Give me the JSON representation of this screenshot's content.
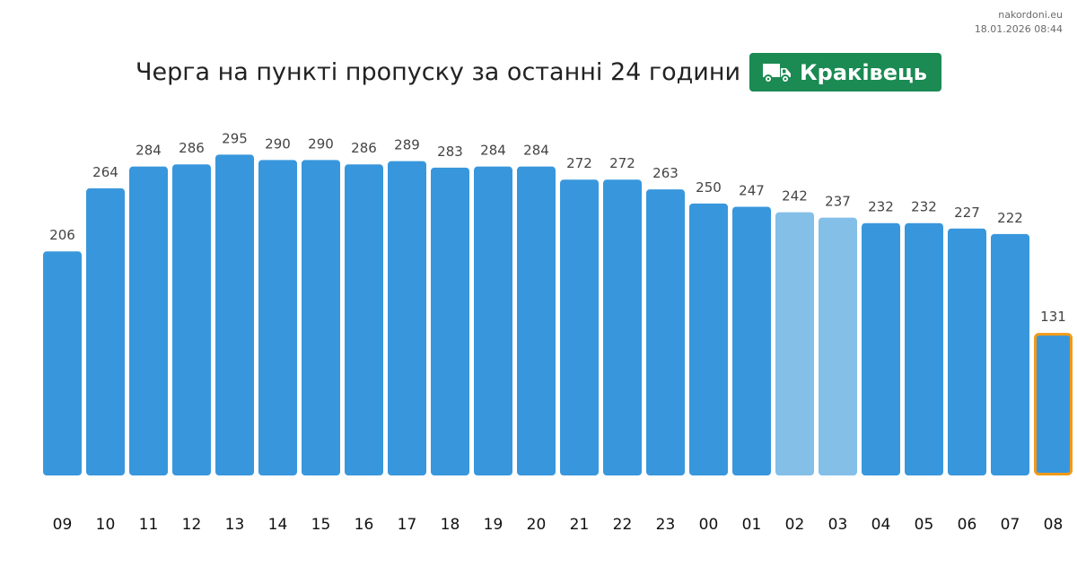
{
  "source": {
    "site": "nakordoni.eu",
    "timestamp": "18.01.2026 08:44"
  },
  "header": {
    "title": "Черга на пункті пропуску за останні 24 години",
    "checkpoint": "Краківець",
    "checkpoint_icon": "truck-icon",
    "badge_color": "#1b8a53"
  },
  "chart_data": {
    "type": "bar",
    "title": "Черга на пункті пропуску за останні 24 години",
    "xlabel": "",
    "ylabel": "",
    "ylim": [
      0,
      300
    ],
    "grid": false,
    "categories": [
      "09",
      "10",
      "11",
      "12",
      "13",
      "14",
      "15",
      "16",
      "17",
      "18",
      "19",
      "20",
      "21",
      "22",
      "23",
      "00",
      "01",
      "02",
      "03",
      "04",
      "05",
      "06",
      "07",
      "08"
    ],
    "values": [
      206,
      264,
      284,
      286,
      295,
      290,
      290,
      286,
      289,
      283,
      284,
      284,
      272,
      272,
      263,
      250,
      247,
      242,
      237,
      232,
      232,
      227,
      222,
      131
    ],
    "highlight": {
      "lighter_bars": [
        "02",
        "03"
      ],
      "current_bar": "08"
    },
    "colors": {
      "bar": "#3897dc",
      "bar_light": "#84bfe8",
      "current_outline": "#f29a18",
      "label": "#444444",
      "tick": "#111111"
    }
  }
}
